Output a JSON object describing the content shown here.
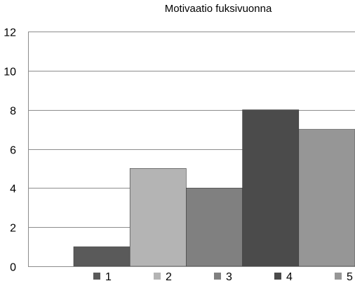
{
  "chart_data": {
    "type": "bar",
    "title": "Motivaatio fuksivuonna",
    "xlabel": "",
    "ylabel": "",
    "ylim": [
      0,
      12
    ],
    "yticks": [
      "0",
      "2",
      "4",
      "6",
      "8",
      "10",
      "12"
    ],
    "grid": true,
    "legend_position": "bottom",
    "categories": [
      "1",
      "2",
      "3",
      "4",
      "5"
    ],
    "values": [
      1,
      5,
      4,
      8,
      7
    ],
    "colors": [
      "#5a5a5a",
      "#b4b4b4",
      "#808080",
      "#4b4b4b",
      "#969696"
    ]
  }
}
